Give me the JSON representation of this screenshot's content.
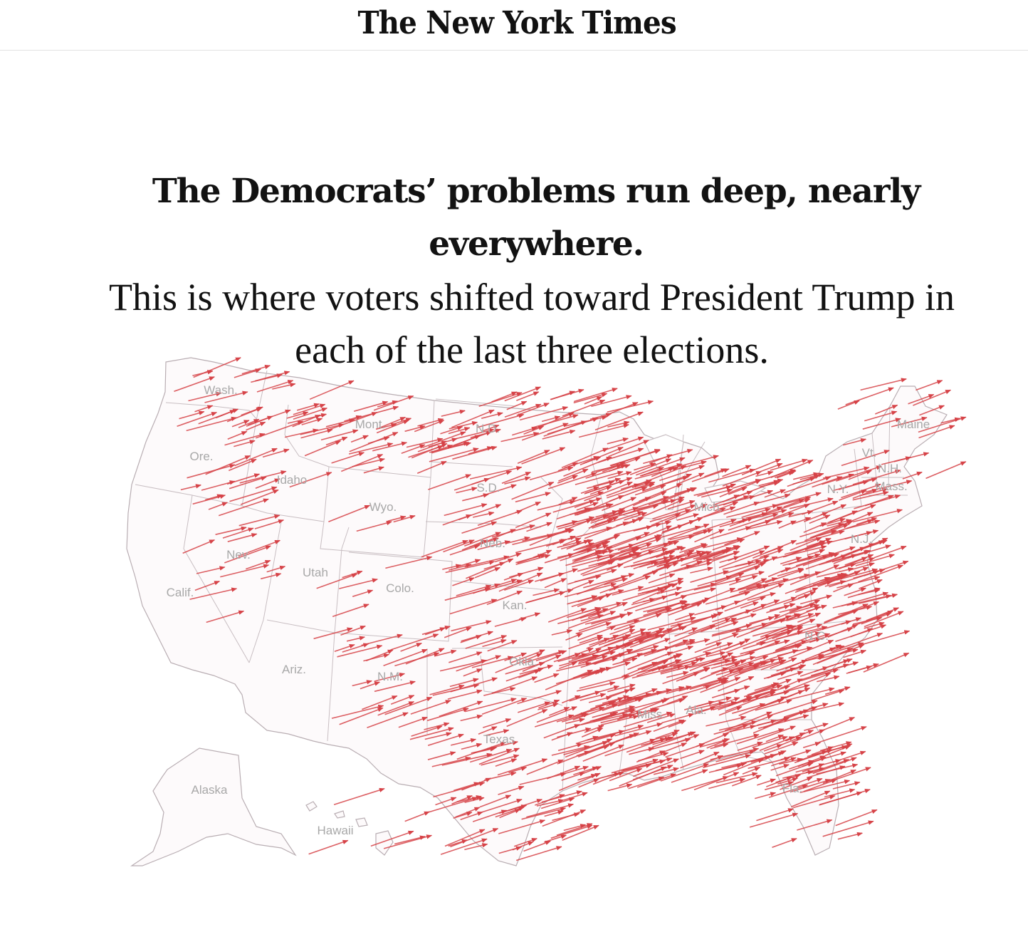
{
  "masthead": {
    "logo_text": "The New York Times"
  },
  "headline": {
    "bold": "The Democrats’ problems run deep, nearly everywhere.",
    "regular": "This is where voters shifted toward President Trump in each of the last three elections."
  },
  "map": {
    "arrow_color": "#d64348",
    "outline_color": "#b9aeb3",
    "land_color": "#fdfafb",
    "state_labels": [
      {
        "text": "Wash."
      },
      {
        "text": "Ore."
      },
      {
        "text": "Calif."
      },
      {
        "text": "Idaho"
      },
      {
        "text": "Nev."
      },
      {
        "text": "Mont."
      },
      {
        "text": "Wyo."
      },
      {
        "text": "Utah"
      },
      {
        "text": "Ariz."
      },
      {
        "text": "Colo."
      },
      {
        "text": "N.M."
      },
      {
        "text": "N.D."
      },
      {
        "text": "S.D."
      },
      {
        "text": "Neb."
      },
      {
        "text": "Kan."
      },
      {
        "text": "Okla."
      },
      {
        "text": "Texas"
      },
      {
        "text": "Mich."
      },
      {
        "text": "Miss."
      },
      {
        "text": "Ala."
      },
      {
        "text": "Fla."
      },
      {
        "text": "N.C."
      },
      {
        "text": "N.Y."
      },
      {
        "text": "Vt."
      },
      {
        "text": "N.H."
      },
      {
        "text": "Mass."
      },
      {
        "text": "Maine"
      },
      {
        "text": "N.J."
      },
      {
        "text": "Alaska"
      },
      {
        "text": "Hawaii"
      }
    ]
  }
}
